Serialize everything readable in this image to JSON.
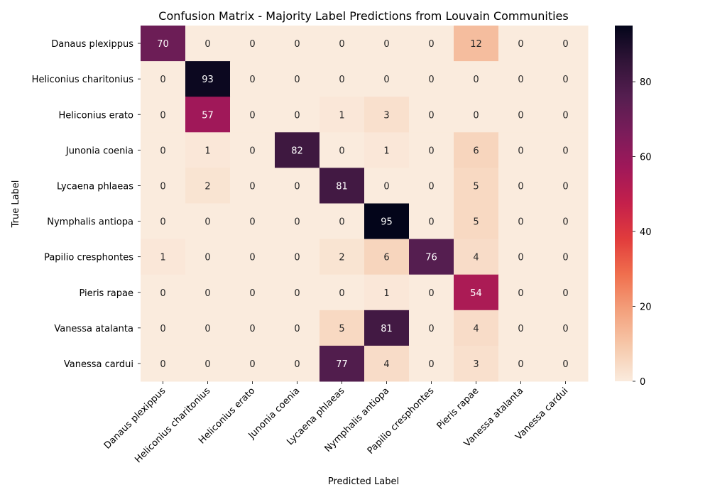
{
  "chart_data": {
    "type": "heatmap",
    "title": "Confusion Matrix - Majority Label Predictions from Louvain Communities",
    "xlabel": "Predicted Label",
    "ylabel": "True Label",
    "x_categories": [
      "Danaus plexippus",
      "Heliconius charitonius",
      "Heliconius erato",
      "Junonia coenia",
      "Lycaena phlaeas",
      "Nymphalis antiopa",
      "Papilio cresphontes",
      "Pieris rapae",
      "Vanessa atalanta",
      "Vanessa cardui"
    ],
    "y_categories": [
      "Danaus plexippus",
      "Heliconius charitonius",
      "Heliconius erato",
      "Junonia coenia",
      "Lycaena phlaeas",
      "Nymphalis antiopa",
      "Papilio cresphontes",
      "Pieris rapae",
      "Vanessa atalanta",
      "Vanessa cardui"
    ],
    "values": [
      [
        70,
        0,
        0,
        0,
        0,
        0,
        0,
        12,
        0,
        0
      ],
      [
        0,
        93,
        0,
        0,
        0,
        0,
        0,
        0,
        0,
        0
      ],
      [
        0,
        57,
        0,
        0,
        1,
        3,
        0,
        0,
        0,
        0
      ],
      [
        0,
        1,
        0,
        82,
        0,
        1,
        0,
        6,
        0,
        0
      ],
      [
        0,
        2,
        0,
        0,
        81,
        0,
        0,
        5,
        0,
        0
      ],
      [
        0,
        0,
        0,
        0,
        0,
        95,
        0,
        5,
        0,
        0
      ],
      [
        1,
        0,
        0,
        0,
        2,
        6,
        76,
        4,
        0,
        0
      ],
      [
        0,
        0,
        0,
        0,
        0,
        1,
        0,
        54,
        0,
        0
      ],
      [
        0,
        0,
        0,
        0,
        5,
        81,
        0,
        4,
        0,
        0
      ],
      [
        0,
        0,
        0,
        0,
        77,
        4,
        0,
        3,
        0,
        0
      ]
    ],
    "colorbar": {
      "vmin": 0,
      "vmax": 95,
      "ticks": [
        0,
        20,
        40,
        60,
        80
      ]
    },
    "colormap": "rocket_r",
    "grid": false,
    "legend": "colorbar-right"
  }
}
